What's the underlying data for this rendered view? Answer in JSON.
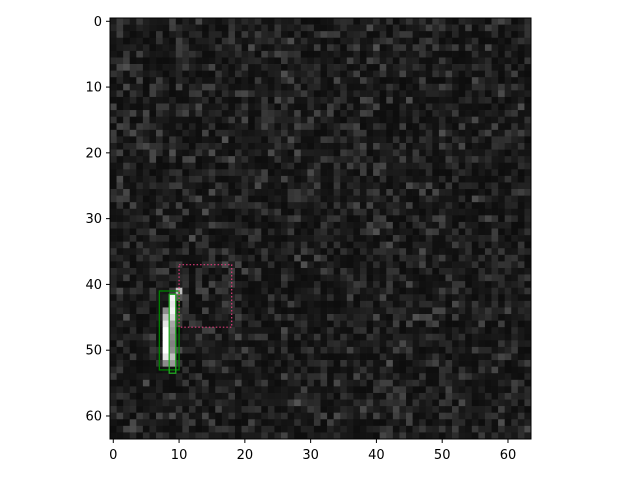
{
  "chart_data": {
    "type": "heatmap",
    "title": "",
    "xlabel": "",
    "ylabel": "",
    "grid_size": [
      64,
      64
    ],
    "colormap": "gray",
    "background_noise_level": [
      0.05,
      0.25
    ],
    "xlim": [
      -0.5,
      63.5
    ],
    "ylim": [
      63.5,
      -0.5
    ],
    "x_ticks": [
      0,
      10,
      20,
      30,
      40,
      50,
      60
    ],
    "y_ticks": [
      0,
      10,
      20,
      30,
      40,
      50,
      60
    ],
    "x_tick_labels": [
      "0",
      "10",
      "20",
      "30",
      "40",
      "50",
      "60"
    ],
    "y_tick_labels": [
      "0",
      "10",
      "20",
      "30",
      "40",
      "50",
      "60"
    ],
    "bright_pixels": [
      {
        "col": 9,
        "row": 42,
        "value": 0.95
      },
      {
        "col": 9,
        "row": 43,
        "value": 0.9
      },
      {
        "col": 8,
        "row": 44,
        "value": 0.55
      },
      {
        "col": 9,
        "row": 44,
        "value": 0.95
      },
      {
        "col": 8,
        "row": 45,
        "value": 0.75
      },
      {
        "col": 9,
        "row": 45,
        "value": 0.85
      },
      {
        "col": 8,
        "row": 46,
        "value": 0.9
      },
      {
        "col": 9,
        "row": 46,
        "value": 0.65
      },
      {
        "col": 8,
        "row": 47,
        "value": 1.0
      },
      {
        "col": 9,
        "row": 47,
        "value": 0.6
      },
      {
        "col": 8,
        "row": 48,
        "value": 1.0
      },
      {
        "col": 9,
        "row": 48,
        "value": 0.55
      },
      {
        "col": 8,
        "row": 49,
        "value": 1.0
      },
      {
        "col": 9,
        "row": 49,
        "value": 0.5
      },
      {
        "col": 8,
        "row": 50,
        "value": 1.0
      },
      {
        "col": 9,
        "row": 50,
        "value": 0.55
      },
      {
        "col": 8,
        "row": 51,
        "value": 0.9
      },
      {
        "col": 9,
        "row": 51,
        "value": 0.75
      },
      {
        "col": 8,
        "row": 52,
        "value": 0.55
      },
      {
        "col": 9,
        "row": 52,
        "value": 0.6
      },
      {
        "col": 10,
        "row": 41,
        "value": 0.75
      },
      {
        "col": 10,
        "row": 42,
        "value": 0.35
      }
    ],
    "boxes": [
      {
        "name": "outer-green-box",
        "x0": 7.0,
        "y0": 41.0,
        "x1": 10.0,
        "y1": 53.0,
        "color": "#008000",
        "style": "solid"
      },
      {
        "name": "inner-green-box",
        "x0": 8.5,
        "y0": 41.5,
        "x1": 9.5,
        "y1": 53.5,
        "color": "#22aa22",
        "style": "solid"
      },
      {
        "name": "magenta-dotted-box",
        "x0": 10.0,
        "y0": 37.0,
        "x1": 18.0,
        "y1": 46.5,
        "color": "#dd3b7a",
        "style": "dotted"
      }
    ]
  }
}
